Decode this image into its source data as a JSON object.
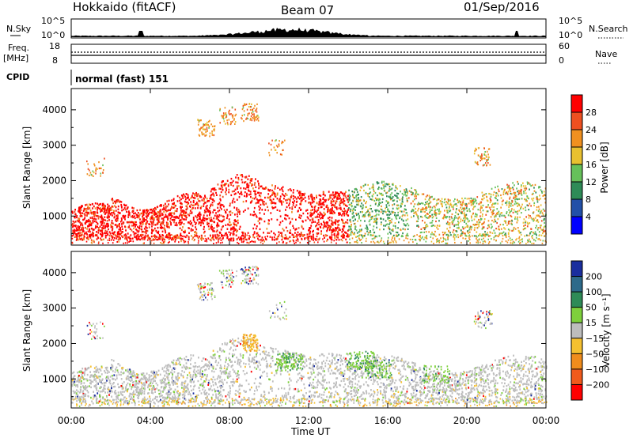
{
  "header": {
    "station": "Hokkaido (fitACF)",
    "beam": "Beam 07",
    "date": "01/Sep/2016"
  },
  "top_panels": {
    "nsky": {
      "label": "N.Sky",
      "ticks": [
        "10^5",
        "10^0"
      ],
      "right_ticks": [
        "10^5",
        "10^0"
      ],
      "right_label": "N.Search"
    },
    "freq": {
      "label_line1": "Freq.",
      "label_line2": "[MHz]",
      "ticks": [
        "18",
        "8"
      ],
      "right_ticks": [
        "60",
        "0"
      ],
      "right_label": "Nave"
    },
    "cpid": {
      "label": "CPID",
      "text": "normal (fast) 151"
    }
  },
  "chart_data": [
    {
      "type": "heatmap",
      "name": "Power",
      "xlabel": "",
      "ylabel": "Slant Range [km]",
      "x_ticks": [
        "00:00",
        "04:00",
        "08:00",
        "12:00",
        "16:00",
        "20:00",
        "00:00"
      ],
      "y_ticks": [
        1000,
        2000,
        3000,
        4000
      ],
      "ylim": [
        180,
        4600
      ],
      "xlim_hours": [
        0,
        24
      ],
      "colorbar": {
        "label": "Power [dB]",
        "ticks": [
          "4",
          "8",
          "12",
          "16",
          "20",
          "24",
          "28"
        ],
        "colors": [
          "#0000ff",
          "#2250a8",
          "#2e8b57",
          "#66c05a",
          "#e8c030",
          "#f09020",
          "#ee5020",
          "#ff0000"
        ]
      },
      "regions": [
        {
          "hours": [
            0,
            14
          ],
          "range_km": [
            200,
            2200
          ],
          "dominant": "red"
        },
        {
          "hours": [
            14,
            24
          ],
          "range_km": [
            300,
            1800
          ],
          "dominant": "green/orange mix"
        }
      ]
    },
    {
      "type": "heatmap",
      "name": "Velocity",
      "xlabel": "Time UT",
      "ylabel": "Slant Range [km]",
      "x_ticks": [
        "00:00",
        "04:00",
        "08:00",
        "12:00",
        "16:00",
        "20:00",
        "00:00"
      ],
      "y_ticks": [
        1000,
        2000,
        3000,
        4000
      ],
      "ylim": [
        180,
        4600
      ],
      "xlim_hours": [
        0,
        24
      ],
      "colorbar": {
        "label": "Velocity [m s⁻¹]",
        "ticks": [
          "200",
          "100",
          "50",
          "15",
          "−15",
          "−50",
          "−100",
          "−200"
        ],
        "colors": [
          "#1a2e9e",
          "#2d6a8a",
          "#2e8b57",
          "#7ed03c",
          "#bdbdbd",
          "#f5c030",
          "#f08c1c",
          "#f05a1c",
          "#ff0000"
        ]
      },
      "regions": [
        {
          "hours": [
            0,
            24
          ],
          "range_km": [
            300,
            2000
          ],
          "dominant": "grey (ground scatter)"
        }
      ]
    }
  ]
}
